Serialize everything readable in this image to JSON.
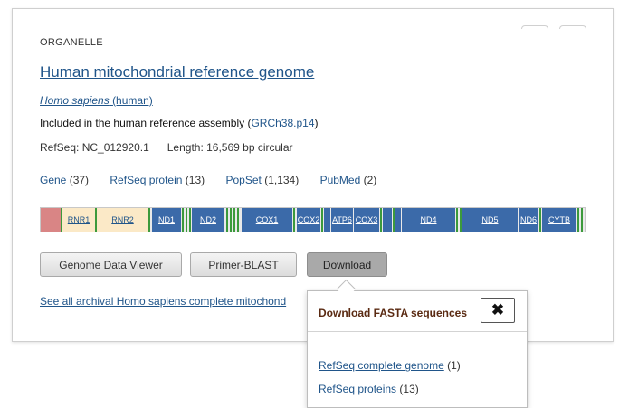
{
  "header": {
    "kicker": "ORGANELLE",
    "title": "Human mitochondrial reference genome",
    "species_italic": "Homo sapiens",
    "species_common": "(human)",
    "included_prefix": "Included in the human reference assembly (",
    "included_link": "GRCh38.p14",
    "included_suffix": ")",
    "refseq": "RefSeq: NC_012920.1",
    "length": "Length: 16,569 bp circular"
  },
  "links": [
    {
      "label": "Gene",
      "count": "(37)"
    },
    {
      "label": "RefSeq protein",
      "count": "(13)"
    },
    {
      "label": "PopSet",
      "count": "(1,134)"
    },
    {
      "label": "PubMed",
      "count": "(2)"
    }
  ],
  "genome_map": {
    "colors": {
      "protein": "#3b6aa9",
      "rRNA": "#fbe9c7",
      "tRNA": "#3c9a3c",
      "control": "#d98585"
    },
    "genes": [
      "RNR1",
      "RNR2",
      "ND1",
      "ND2",
      "COX1",
      "COX2",
      "ATP6",
      "COX3",
      "ND4",
      "ND5",
      "ND6",
      "CYTB"
    ]
  },
  "buttons": {
    "genome_viewer": "Genome Data Viewer",
    "primer_blast": "Primer-BLAST",
    "download": "Download"
  },
  "archival_link": "See all archival Homo sapiens complete mitochond",
  "download_popover": {
    "heading": "Download FASTA sequences",
    "close_icon": "close-icon",
    "close_glyph": "✖",
    "items": [
      {
        "label": "RefSeq complete genome",
        "count": "(1)"
      },
      {
        "label": "RefSeq proteins",
        "count": "(13)"
      }
    ]
  }
}
